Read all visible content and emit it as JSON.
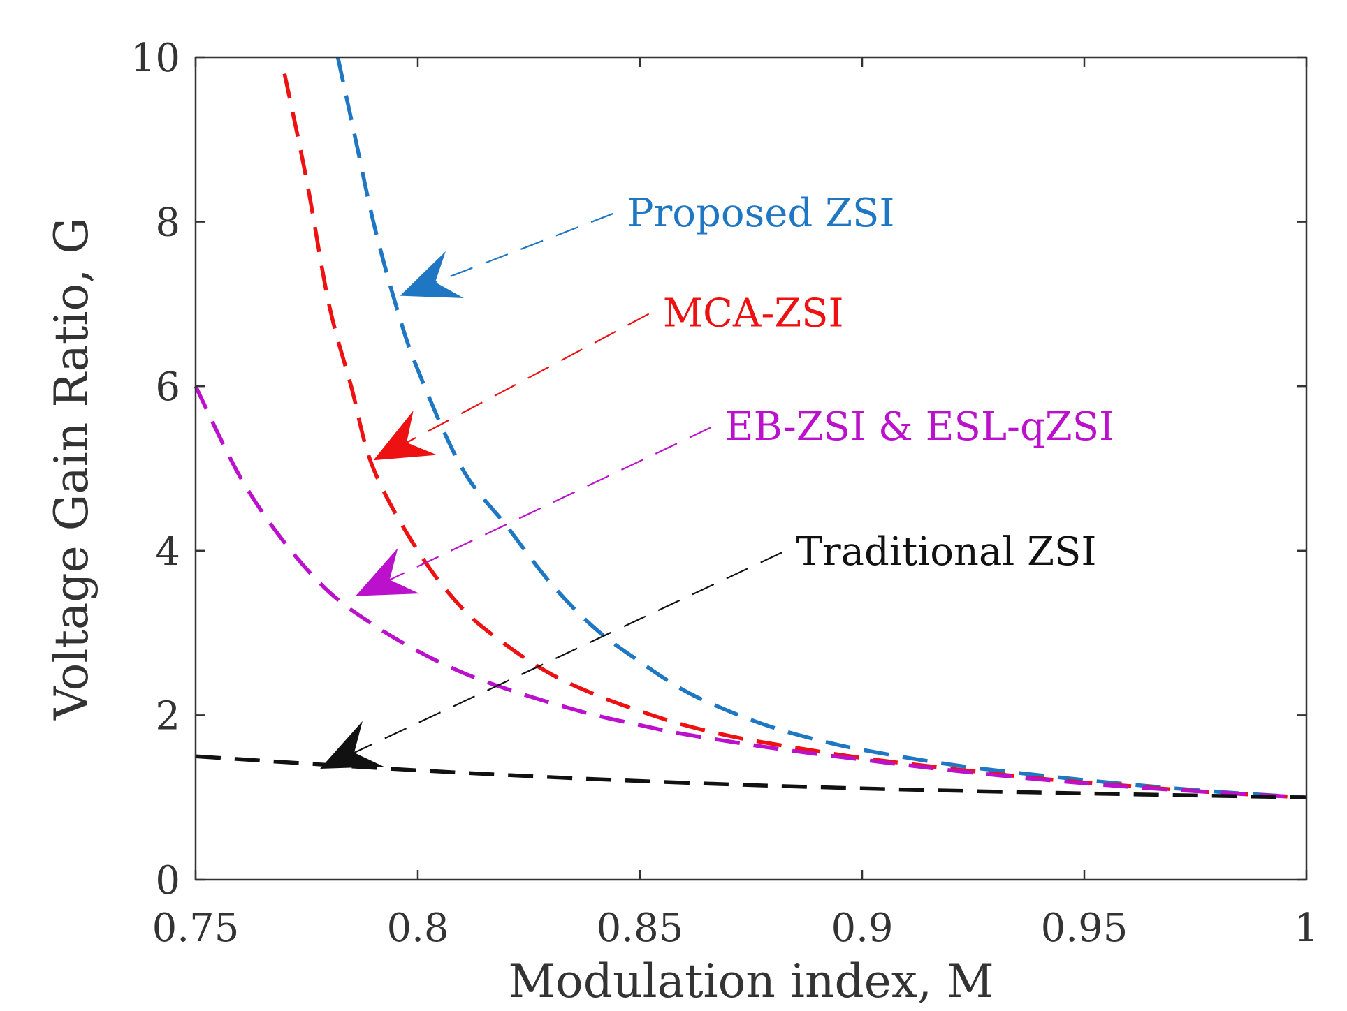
{
  "chart_data": {
    "type": "line",
    "title": "",
    "xlabel": "Modulation index, M",
    "ylabel": "Voltage Gain Ratio, G",
    "xlim": [
      0.75,
      1
    ],
    "ylim": [
      0,
      10
    ],
    "xticks": [
      0.75,
      0.8,
      0.85,
      0.9,
      0.95,
      1
    ],
    "xtick_labels": [
      "0.75",
      "0.8",
      "0.85",
      "0.9",
      "0.95",
      "1"
    ],
    "yticks": [
      0,
      2,
      4,
      6,
      8,
      10
    ],
    "ytick_labels": [
      "0",
      "2",
      "4",
      "6",
      "8",
      "10"
    ],
    "grid": false,
    "series": [
      {
        "name": "Proposed ZSI",
        "color": "#1f77c4",
        "x": [
          0.782,
          0.786,
          0.79,
          0.795,
          0.8,
          0.81,
          0.82,
          0.83,
          0.84,
          0.85,
          0.86,
          0.87,
          0.88,
          0.89,
          0.9,
          0.92,
          0.94,
          0.96,
          0.98,
          1.0
        ],
        "y": [
          10.0,
          9.0,
          8.0,
          7.0,
          6.2,
          5.0,
          4.3,
          3.6,
          3.05,
          2.65,
          2.3,
          2.05,
          1.85,
          1.7,
          1.58,
          1.4,
          1.27,
          1.16,
          1.07,
          1.0
        ]
      },
      {
        "name": "MCA-ZSI",
        "color": "#ee1111",
        "x": [
          0.77,
          0.775,
          0.78,
          0.785,
          0.79,
          0.8,
          0.81,
          0.82,
          0.83,
          0.84,
          0.85,
          0.86,
          0.87,
          0.88,
          0.9,
          0.92,
          0.94,
          0.96,
          0.98,
          1.0
        ],
        "y": [
          9.8,
          8.5,
          7.0,
          6.0,
          5.0,
          4.0,
          3.3,
          2.85,
          2.5,
          2.25,
          2.05,
          1.88,
          1.75,
          1.65,
          1.48,
          1.35,
          1.23,
          1.14,
          1.06,
          1.0
        ]
      },
      {
        "name": "EB-ZSI & ESL-qZSI",
        "color": "#bb11cc",
        "x": [
          0.75,
          0.76,
          0.77,
          0.78,
          0.79,
          0.8,
          0.81,
          0.82,
          0.83,
          0.84,
          0.85,
          0.86,
          0.88,
          0.9,
          0.92,
          0.94,
          0.96,
          0.98,
          1.0
        ],
        "y": [
          6.0,
          4.9,
          4.1,
          3.5,
          3.1,
          2.78,
          2.52,
          2.32,
          2.15,
          2.0,
          1.88,
          1.77,
          1.6,
          1.46,
          1.33,
          1.22,
          1.13,
          1.06,
          1.0
        ]
      },
      {
        "name": "Traditional ZSI",
        "color": "#111111",
        "x": [
          0.75,
          0.8,
          0.85,
          0.9,
          0.95,
          1.0
        ],
        "y": [
          1.5,
          1.33,
          1.2,
          1.11,
          1.05,
          1.0
        ]
      }
    ],
    "annotations": [
      {
        "text": "Proposed ZSI",
        "color": "#1f77c4",
        "from": [
          0.844,
          8.1
        ],
        "to": [
          0.796,
          7.1
        ]
      },
      {
        "text": "MCA-ZSI",
        "color": "#ee1111",
        "from": [
          0.852,
          6.88
        ],
        "to": [
          0.79,
          5.1
        ]
      },
      {
        "text": "EB-ZSI & ESL-qZSI",
        "color": "#bb11cc",
        "from": [
          0.866,
          5.5
        ],
        "to": [
          0.786,
          3.45
        ]
      },
      {
        "text": "Traditional ZSI",
        "color": "#111111",
        "from": [
          0.882,
          3.98
        ],
        "to": [
          0.778,
          1.35
        ]
      }
    ]
  }
}
